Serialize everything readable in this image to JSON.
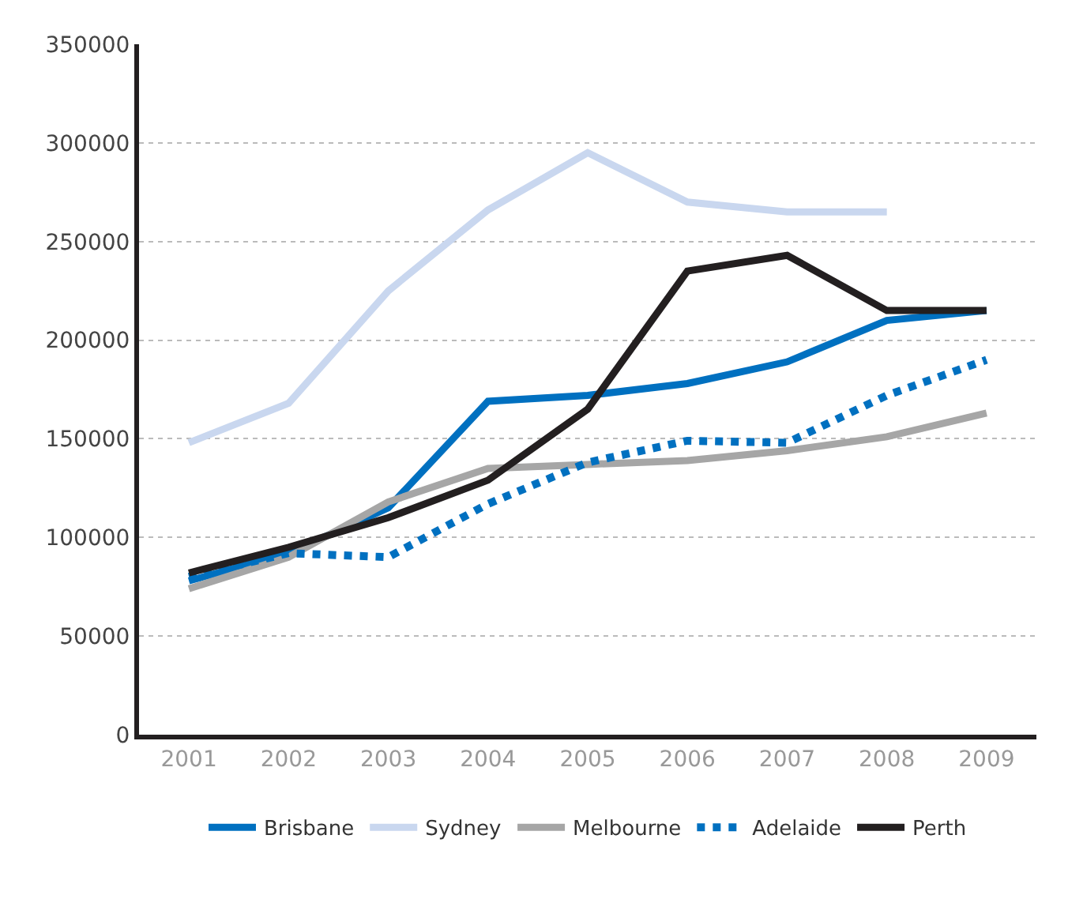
{
  "chart_data": {
    "type": "line",
    "categories": [
      "2001",
      "2002",
      "2003",
      "2004",
      "2005",
      "2006",
      "2007",
      "2008",
      "2009"
    ],
    "series": [
      {
        "name": "Brisbane",
        "color": "#0070c0",
        "values": [
          78000,
          92000,
          115000,
          169000,
          172000,
          178000,
          189000,
          210000,
          215000
        ]
      },
      {
        "name": "Sydney",
        "color": "#c9d7ef",
        "values": [
          148000,
          168000,
          225000,
          266000,
          295000,
          270000,
          265000,
          265000,
          null
        ]
      },
      {
        "name": "Melbourne",
        "color": "#a6a6a6",
        "values": [
          74000,
          90000,
          118000,
          135000,
          137000,
          139000,
          144000,
          151000,
          163000
        ]
      },
      {
        "name": "Adelaide",
        "color": "#0070c0",
        "line_style": "dotted",
        "values": [
          80000,
          92000,
          90000,
          117000,
          138000,
          149000,
          148000,
          172000,
          190000
        ]
      },
      {
        "name": "Perth",
        "color": "#231f20",
        "values": [
          82000,
          95000,
          110000,
          129000,
          165000,
          235000,
          243000,
          215000,
          215000
        ]
      }
    ],
    "ylim": [
      0,
      350000
    ],
    "yticks": [
      0,
      50000,
      100000,
      150000,
      200000,
      250000,
      300000,
      350000
    ],
    "grid": "y",
    "legend": "bottom",
    "marker": "none",
    "line_style": "solid"
  }
}
